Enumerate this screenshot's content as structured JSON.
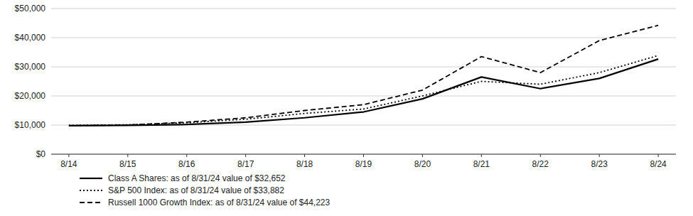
{
  "chart_data": {
    "type": "line",
    "title": "",
    "categories": [
      "8/14",
      "8/15",
      "8/16",
      "8/17",
      "8/18",
      "8/19",
      "8/20",
      "8/21",
      "8/22",
      "8/23",
      "8/24"
    ],
    "series": [
      {
        "name": "Class A Shares: as of 8/31/24 value of $32,652",
        "color": "#000000",
        "line_style": "solid",
        "values": [
          9800,
          9900,
          10200,
          11000,
          12500,
          14500,
          19000,
          26500,
          22500,
          26000,
          32652
        ]
      },
      {
        "name": "S&P 500 Index: as of 8/31/24 value of $33,882",
        "color": "#000000",
        "line_style": "dotted",
        "values": [
          9900,
          10100,
          10800,
          12000,
          14000,
          15500,
          20000,
          25000,
          24000,
          28000,
          33882
        ]
      },
      {
        "name": "Russell 1000 Growth Index: as of 8/31/24 value of $44,223",
        "color": "#000000",
        "line_style": "dashed",
        "values": [
          9800,
          10000,
          11000,
          12500,
          15000,
          17000,
          22000,
          33500,
          28000,
          39000,
          44223
        ]
      }
    ],
    "ylim": [
      0,
      50000
    ],
    "yticks": [
      {
        "value": 0,
        "label": "$0"
      },
      {
        "value": 10000,
        "label": "$10,000"
      },
      {
        "value": 20000,
        "label": "$20,000"
      },
      {
        "value": 30000,
        "label": "$30,000"
      },
      {
        "value": 40000,
        "label": "$40,000"
      },
      {
        "value": 50000,
        "label": "$50,000"
      }
    ],
    "grid": true,
    "legend": "bottom"
  }
}
